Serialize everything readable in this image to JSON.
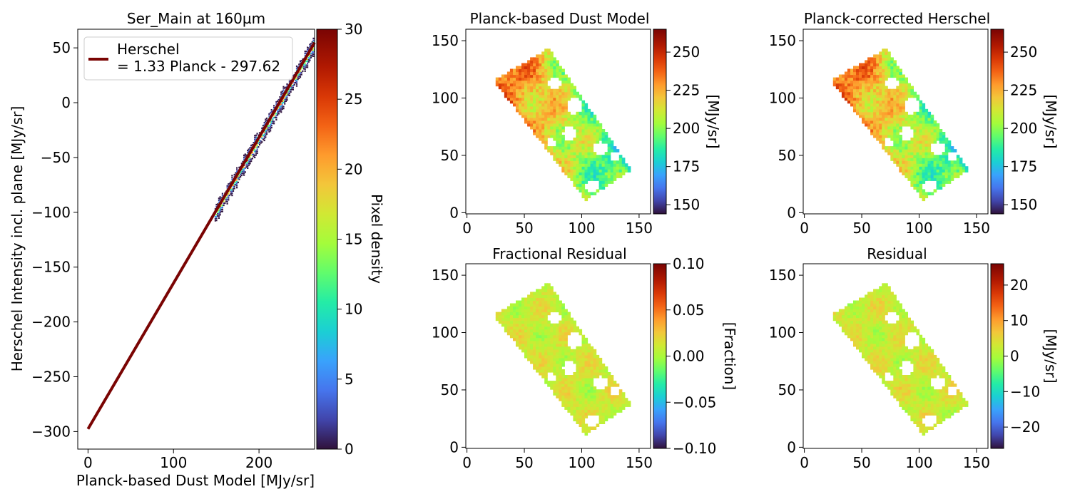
{
  "chart_data": [
    {
      "type": "heatmap",
      "panel": "density",
      "title": "Ser_Main at 160µm",
      "xlabel": "Planck-based Dust Model [MJy/sr]",
      "ylabel": "Herschel Intensity incl. plane [MJy/sr]",
      "xlim": [
        -12,
        265
      ],
      "ylim": [
        -316,
        67
      ],
      "xticks": [
        0,
        100,
        200
      ],
      "yticks": [
        50,
        0,
        -50,
        -100,
        -150,
        -200,
        -250,
        -300
      ],
      "legend": {
        "placement": "top-left",
        "entries": [
          "Herschel",
          "= 1.33 Planck - 297.62"
        ]
      },
      "fit_line": {
        "slope": 1.33,
        "intercept": -297.62,
        "color": "#7a0403"
      },
      "colorbar": {
        "label": "Pixel density",
        "range": [
          0,
          30
        ],
        "ticks": [
          0,
          5,
          10,
          15,
          20,
          25,
          30
        ]
      },
      "data_extent": {
        "x": [
          148,
          265
        ],
        "y": [
          -102,
          67
        ]
      }
    },
    {
      "type": "heatmap",
      "panel": "map",
      "title": "Planck-based Dust Model",
      "xticks": [
        0,
        50,
        100,
        150
      ],
      "yticks": [
        0,
        50,
        100,
        150
      ],
      "xlim": [
        -1,
        160
      ],
      "ylim": [
        -1,
        160
      ],
      "colorbar": {
        "label": "[MJy/sr]",
        "range": [
          144,
          265
        ],
        "ticks": [
          150,
          175,
          200,
          225,
          250
        ]
      }
    },
    {
      "type": "heatmap",
      "panel": "map",
      "title": "Planck-corrected Herschel",
      "xticks": [
        0,
        50,
        100,
        150
      ],
      "yticks": [
        0,
        50,
        100,
        150
      ],
      "xlim": [
        -1,
        160
      ],
      "ylim": [
        -1,
        160
      ],
      "colorbar": {
        "label": "[MJy/sr]",
        "range": [
          144,
          265
        ],
        "ticks": [
          150,
          175,
          200,
          225,
          250
        ]
      }
    },
    {
      "type": "heatmap",
      "panel": "map",
      "title": "Fractional Residual",
      "xticks": [
        0,
        50,
        100,
        150
      ],
      "yticks": [
        0,
        50,
        100,
        150
      ],
      "xlim": [
        -1,
        160
      ],
      "ylim": [
        -1,
        160
      ],
      "colorbar": {
        "label": "[Fraction]",
        "range": [
          -0.1,
          0.1
        ],
        "ticks": [
          0.1,
          0.05,
          0.0,
          -0.05,
          -0.1
        ],
        "tick_labels": [
          "0.10",
          "0.05",
          "0.00",
          "−0.05",
          "−0.10"
        ]
      }
    },
    {
      "type": "heatmap",
      "panel": "map",
      "title": "Residual",
      "xticks": [
        0,
        50,
        100,
        150
      ],
      "yticks": [
        0,
        50,
        100,
        150
      ],
      "xlim": [
        -1,
        160
      ],
      "ylim": [
        -1,
        160
      ],
      "colorbar": {
        "label": "[MJy/sr]",
        "range": [
          -26,
          26
        ],
        "ticks": [
          20,
          10,
          0,
          -10,
          -20
        ]
      }
    }
  ]
}
